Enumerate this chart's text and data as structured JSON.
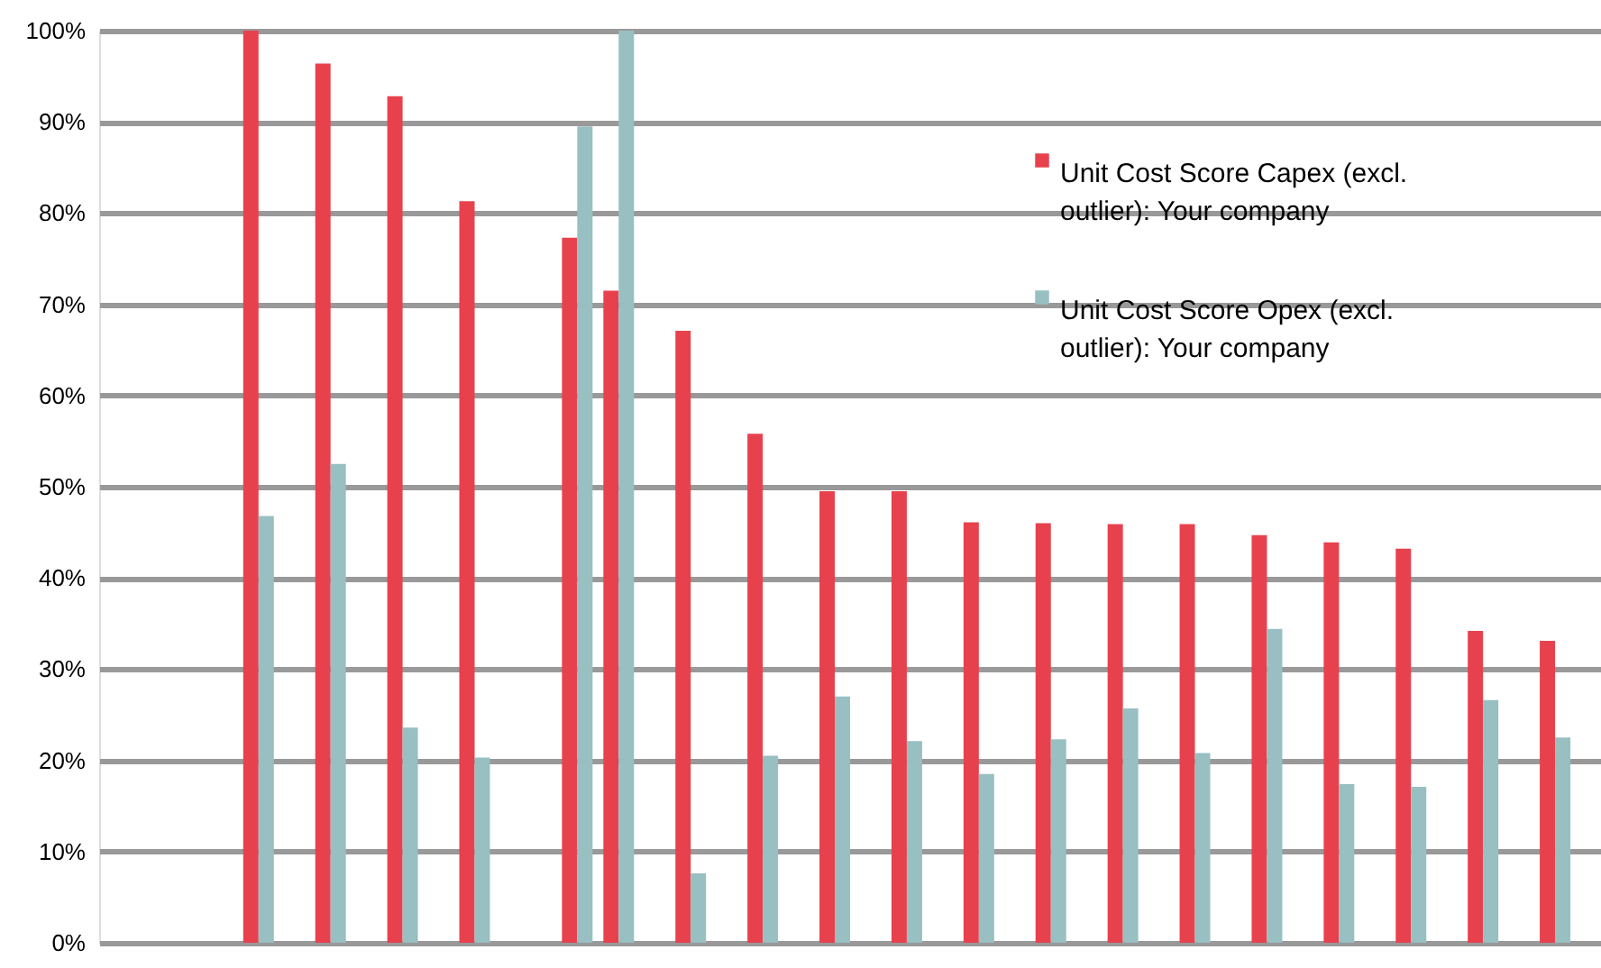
{
  "chart_data": {
    "type": "bar",
    "categories": [
      null,
      null,
      null,
      null,
      null,
      null,
      null,
      null,
      null,
      null,
      null,
      null,
      null,
      null,
      null,
      null,
      null,
      null,
      null,
      null,
      null
    ],
    "series": [
      {
        "color": "#e8414e",
        "values": [
          null,
          null,
          100,
          96.4,
          92.8,
          81.3,
          null,
          71.5,
          67.1,
          55.8,
          49.5,
          49.5,
          46.1,
          46.0,
          45.9,
          45.9,
          44.7,
          43.9,
          43.2,
          34.2,
          33.1
        ]
      },
      {
        "color": "#98bfc2",
        "values": [
          null,
          null,
          46.8,
          52.5,
          23.6,
          20.3,
          null,
          100,
          7.6,
          20.5,
          27.0,
          22.1,
          18.5,
          22.3,
          25.7,
          20.8,
          34.4,
          17.4,
          17.1,
          26.6,
          22.5
        ]
      },
      {
        "name": "Unit Cost Score Capex (excl. outlier): Your company",
        "color": "#e8414e",
        "values": [
          null,
          null,
          null,
          null,
          null,
          null,
          77.3,
          null,
          null,
          null,
          null,
          null,
          null,
          null,
          null,
          null,
          null,
          null,
          null,
          null,
          null
        ]
      },
      {
        "name": "Unit Cost Score Opex (excl. outlier): Your company",
        "color": "#98bfc2",
        "values": [
          null,
          null,
          null,
          null,
          null,
          null,
          89.5,
          null,
          null,
          null,
          null,
          null,
          null,
          null,
          null,
          null,
          null,
          null,
          null,
          null,
          null
        ]
      }
    ],
    "ylim": [
      0,
      100
    ],
    "yticks": [
      {
        "value": 0,
        "label": "0%"
      },
      {
        "value": 10,
        "label": "10%"
      },
      {
        "value": 20,
        "label": "20%"
      },
      {
        "value": 30,
        "label": "30%"
      },
      {
        "value": 40,
        "label": "40%"
      },
      {
        "value": 50,
        "label": "50%"
      },
      {
        "value": 60,
        "label": "60%"
      },
      {
        "value": 70,
        "label": "70%"
      },
      {
        "value": 80,
        "label": "80%"
      },
      {
        "value": 90,
        "label": "90%"
      },
      {
        "value": 100,
        "label": "100%"
      }
    ],
    "grid": "y",
    "legend": "top right",
    "tick_labels": "y"
  }
}
